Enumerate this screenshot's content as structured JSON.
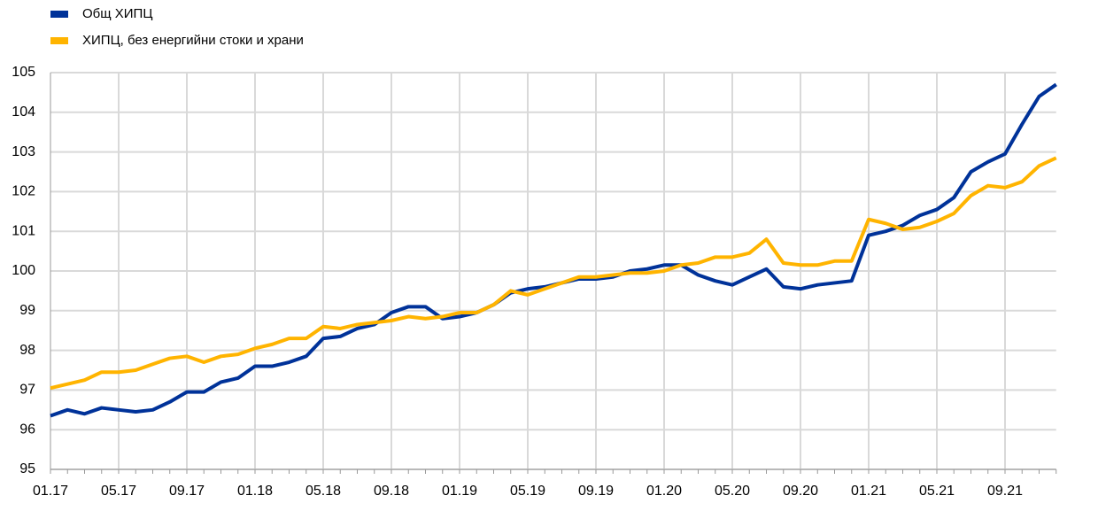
{
  "chart_data": {
    "type": "line",
    "categories": [
      "01.17",
      null,
      null,
      null,
      "05.17",
      null,
      null,
      null,
      "09.17",
      null,
      null,
      null,
      "01.18",
      null,
      null,
      null,
      "05.18",
      null,
      null,
      null,
      "09.18",
      null,
      null,
      null,
      "01.19",
      null,
      null,
      null,
      "05.19",
      null,
      null,
      null,
      "09.19",
      null,
      null,
      null,
      "01.20",
      null,
      null,
      null,
      "05.20",
      null,
      null,
      null,
      "09.20",
      null,
      null,
      null,
      "01.21",
      null,
      null,
      null,
      "05.21",
      null,
      null,
      null,
      "09.21",
      null,
      null,
      null
    ],
    "series": [
      {
        "name": "Общ ХИПЦ",
        "color": "#003299",
        "values": [
          96.35,
          96.5,
          96.4,
          96.55,
          96.5,
          96.45,
          96.5,
          96.7,
          96.95,
          96.95,
          97.2,
          97.3,
          97.6,
          97.6,
          97.7,
          97.85,
          98.3,
          98.35,
          98.55,
          98.65,
          98.95,
          99.1,
          99.1,
          98.8,
          98.85,
          98.95,
          99.15,
          99.45,
          99.55,
          99.6,
          99.7,
          99.8,
          99.8,
          99.85,
          100.0,
          100.05,
          100.15,
          100.15,
          99.9,
          99.75,
          99.65,
          99.85,
          100.05,
          99.6,
          99.55,
          99.65,
          99.7,
          99.75,
          100.9,
          101.0,
          101.15,
          101.4,
          101.55,
          101.85,
          102.5,
          102.75,
          102.95,
          103.7,
          104.4,
          104.7
        ]
      },
      {
        "name": "ХИПЦ, без енергийни   стоки и храни",
        "color": "#FFB400",
        "values": [
          97.05,
          97.15,
          97.25,
          97.45,
          97.45,
          97.5,
          97.65,
          97.8,
          97.85,
          97.7,
          97.85,
          97.9,
          98.05,
          98.15,
          98.3,
          98.3,
          98.6,
          98.55,
          98.65,
          98.7,
          98.75,
          98.85,
          98.8,
          98.85,
          98.95,
          98.95,
          99.15,
          99.5,
          99.4,
          99.55,
          99.7,
          99.85,
          99.85,
          99.9,
          99.95,
          99.95,
          100.0,
          100.15,
          100.2,
          100.35,
          100.35,
          100.45,
          100.8,
          100.2,
          100.15,
          100.15,
          100.25,
          100.25,
          101.3,
          101.2,
          101.05,
          101.1,
          101.25,
          101.45,
          101.9,
          102.15,
          102.1,
          102.25,
          102.65,
          102.85
        ]
      }
    ],
    "ylim": [
      95,
      105
    ],
    "yticks": [
      95,
      96,
      97,
      98,
      99,
      100,
      101,
      102,
      103,
      104,
      105
    ],
    "grid": true,
    "legend": "top-left"
  }
}
